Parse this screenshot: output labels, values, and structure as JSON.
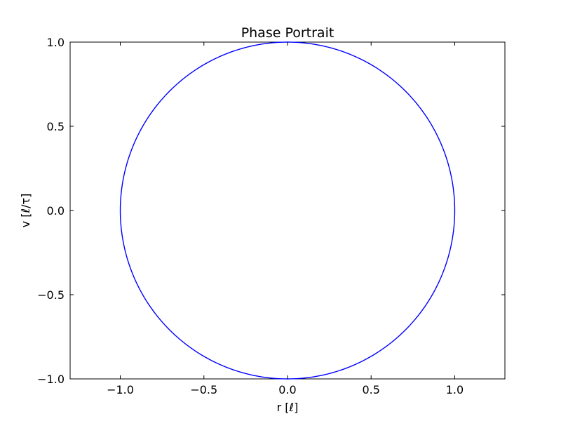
{
  "chart_data": {
    "type": "line",
    "title": "Phase Portrait",
    "xlabel": "r [ℓ]",
    "ylabel": "v [ℓ/τ]",
    "xlim": [
      -1.3,
      1.3
    ],
    "ylim": [
      -1.0,
      1.0
    ],
    "xticks": [
      -1.0,
      -0.5,
      0.0,
      0.5,
      1.0
    ],
    "xtick_labels": [
      "−1.0",
      "−0.5",
      "0.0",
      "0.5",
      "1.0"
    ],
    "yticks": [
      -1.0,
      -0.5,
      0.0,
      0.5,
      1.0
    ],
    "ytick_labels": [
      "−1.0",
      "−0.5",
      "0.0",
      "0.5",
      "1.0"
    ],
    "grid": false,
    "series": [
      {
        "color": "#0000ff",
        "curve": "circle",
        "center": [
          0.0,
          0.0
        ],
        "radius": 1.0,
        "x": [
          1.0,
          0.966,
          0.866,
          0.707,
          0.5,
          0.259,
          0.0,
          -0.259,
          -0.5,
          -0.707,
          -0.866,
          -0.966,
          -1.0,
          -0.966,
          -0.866,
          -0.707,
          -0.5,
          -0.259,
          0.0,
          0.259,
          0.5,
          0.707,
          0.866,
          0.966,
          1.0
        ],
        "y": [
          0.0,
          0.259,
          0.5,
          0.707,
          0.866,
          0.966,
          1.0,
          0.966,
          0.866,
          0.707,
          0.5,
          0.259,
          0.0,
          -0.259,
          -0.5,
          -0.707,
          -0.866,
          -0.966,
          -1.0,
          -0.966,
          -0.866,
          -0.707,
          -0.5,
          -0.259,
          0.0
        ]
      }
    ]
  }
}
